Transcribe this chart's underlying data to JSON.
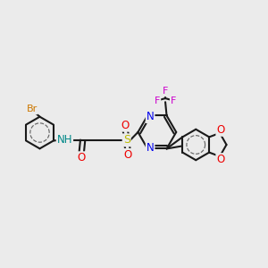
{
  "bg_color": "#ebebeb",
  "bond_color": "#1a1a1a",
  "bond_width": 1.5,
  "atoms": {
    "Br": {
      "color": "#cc7700"
    },
    "N": {
      "color": "#0000ee"
    },
    "O": {
      "color": "#ee0000"
    },
    "S": {
      "color": "#bbbb00"
    },
    "F": {
      "color": "#cc00cc"
    },
    "H": {
      "color": "#008888"
    }
  },
  "figsize": [
    3.0,
    3.0
  ],
  "dpi": 100
}
